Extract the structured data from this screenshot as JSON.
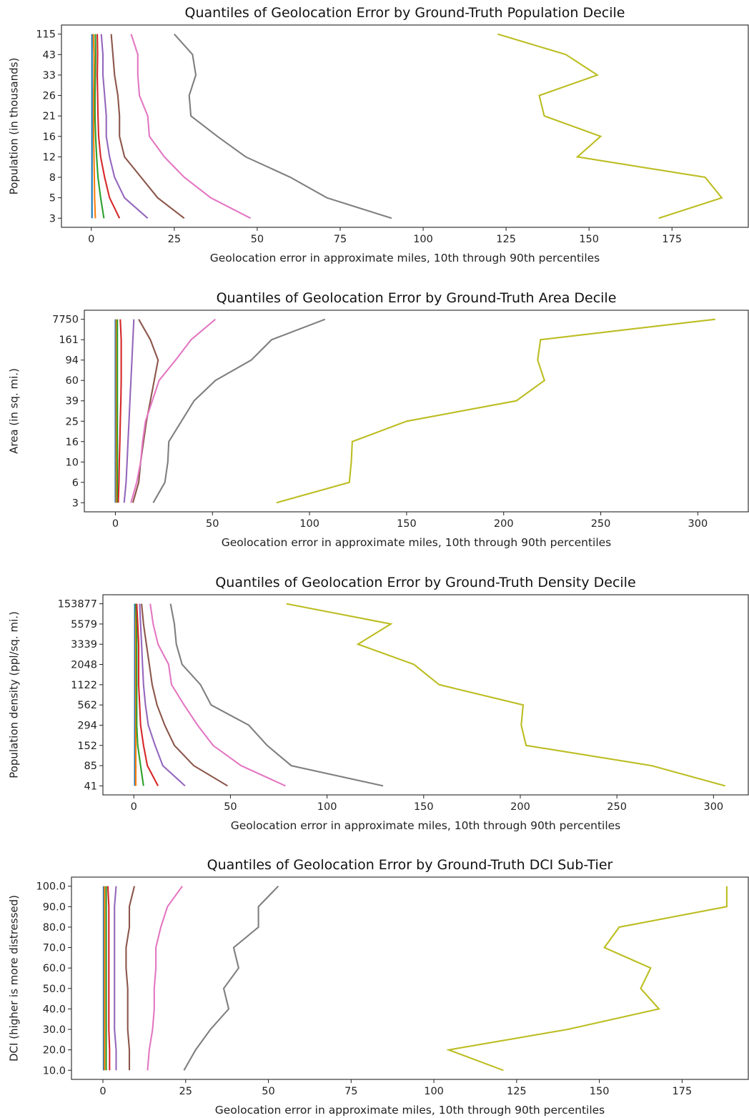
{
  "colors": [
    "#1f77b4",
    "#ff7f0e",
    "#2ca02c",
    "#d62728",
    "#9467bd",
    "#8c564b",
    "#e377c2",
    "#7f7f7f",
    "#bcbd22"
  ],
  "chart_data": [
    {
      "type": "line",
      "title": "Quantiles of Geolocation Error by Ground-Truth Population Decile",
      "xlabel": "Geolocation error in approximate miles, 10th through 90th percentiles",
      "ylabel": "Population (in thousands)",
      "xlim": [
        -9,
        198
      ],
      "xticks": [
        0,
        25,
        50,
        75,
        100,
        125,
        150,
        175
      ],
      "yticks": [
        "3",
        "5",
        "8",
        "12",
        "16",
        "21",
        "26",
        "33",
        "43",
        "115"
      ],
      "series": [
        {
          "values": [
            0.2,
            0.2,
            0.2,
            0.2,
            0.2,
            0.2,
            0.2,
            0.2,
            0.2,
            0.2
          ]
        },
        {
          "values": [
            1.2,
            1.0,
            0.9,
            0.8,
            0.7,
            0.7,
            0.7,
            0.8,
            0.8,
            0.6
          ]
        },
        {
          "values": [
            3.8,
            2.8,
            2.0,
            1.6,
            1.3,
            1.1,
            1.1,
            1.2,
            1.3,
            1.2
          ]
        },
        {
          "values": [
            8.5,
            5.5,
            4.0,
            2.8,
            2.2,
            2.0,
            1.9,
            1.8,
            1.9,
            1.8
          ]
        },
        {
          "values": [
            17.0,
            10.0,
            7.0,
            5.5,
            4.5,
            4.5,
            4.0,
            3.5,
            3.5,
            3.0
          ]
        },
        {
          "values": [
            28.0,
            20.0,
            15.0,
            10.0,
            8.5,
            8.5,
            8.0,
            7.0,
            6.5,
            6.0
          ]
        },
        {
          "values": [
            48.0,
            36.0,
            28.0,
            22.0,
            17.5,
            17.0,
            14.5,
            14.0,
            14.0,
            12.0
          ]
        },
        {
          "values": [
            90.5,
            71.0,
            60.0,
            46.5,
            38.0,
            30.0,
            29.5,
            31.5,
            30.5,
            25.0
          ]
        },
        {
          "values": [
            171.0,
            190.0,
            185.0,
            146.5,
            153.5,
            136.5,
            135.0,
            152.5,
            143.0,
            122.5
          ]
        }
      ]
    },
    {
      "type": "line",
      "title": "Quantiles of Geolocation Error by Ground-Truth Area Decile",
      "xlabel": "Geolocation error in approximate miles, 10th through 90th percentiles",
      "ylabel": "Area (in sq. mi.)",
      "xlim": [
        -16,
        326
      ],
      "xticks": [
        0,
        50,
        100,
        150,
        200,
        250,
        300
      ],
      "yticks": [
        "3",
        "6",
        "10",
        "16",
        "25",
        "39",
        "60",
        "94",
        "161",
        "7750"
      ],
      "series": [
        {
          "values": [
            0,
            0,
            0,
            0,
            0,
            0,
            0,
            0,
            0,
            0
          ]
        },
        {
          "values": [
            0.5,
            0.5,
            0.5,
            0.5,
            0.5,
            0.5,
            0.5,
            0.5,
            0.5,
            0.5
          ]
        },
        {
          "values": [
            1.0,
            1.0,
            1.0,
            1.0,
            1.0,
            1.0,
            1.0,
            1.0,
            1.0,
            1.0
          ]
        },
        {
          "values": [
            1.5,
            1.8,
            2.0,
            2.3,
            2.5,
            2.8,
            3.0,
            3.0,
            3.0,
            2.5
          ]
        },
        {
          "values": [
            4.5,
            5.5,
            6.0,
            6.5,
            7.0,
            7.5,
            8.0,
            8.5,
            9.0,
            9.5
          ]
        },
        {
          "values": [
            9.0,
            12.0,
            13.0,
            14.5,
            16.0,
            18.0,
            20.0,
            22.0,
            18.0,
            12.0
          ]
        },
        {
          "values": [
            8.0,
            11.0,
            13.0,
            14.0,
            15.5,
            19.0,
            22.5,
            31.0,
            39.0,
            51.5
          ]
        },
        {
          "values": [
            19.5,
            25.5,
            27.0,
            27.5,
            34.0,
            40.5,
            51.5,
            70.0,
            80.5,
            108.0
          ]
        },
        {
          "values": [
            83.0,
            120.5,
            121.5,
            122.0,
            150.0,
            206.5,
            221.0,
            217.5,
            219.0,
            309.0
          ]
        }
      ]
    },
    {
      "type": "line",
      "title": "Quantiles of Geolocation Error by Ground-Truth Density Decile",
      "xlabel": "Geolocation error in approximate miles, 10th through 90th percentiles",
      "ylabel": "Population density (ppl/sq. mi.)",
      "xlim": [
        -16,
        318
      ],
      "xticks": [
        0,
        50,
        100,
        150,
        200,
        250,
        300
      ],
      "yticks": [
        "41",
        "85",
        "152",
        "294",
        "562",
        "1122",
        "2048",
        "3339",
        "5579",
        "153877"
      ],
      "series": [
        {
          "values": [
            0.5,
            0.5,
            0.5,
            0.5,
            0.5,
            0.5,
            0.5,
            0.5,
            0.5,
            0.5
          ]
        },
        {
          "values": [
            1.0,
            1.0,
            1.0,
            1.0,
            1.0,
            1.0,
            1.0,
            1.0,
            1.0,
            1.0
          ]
        },
        {
          "values": [
            5.0,
            3.5,
            2.0,
            1.5,
            1.5,
            1.5,
            1.5,
            1.5,
            1.5,
            1.0
          ]
        },
        {
          "values": [
            12.5,
            7.0,
            5.0,
            3.5,
            3.0,
            2.5,
            2.5,
            2.5,
            2.0,
            1.5
          ]
        },
        {
          "values": [
            26.5,
            15.0,
            11.0,
            7.5,
            6.0,
            5.0,
            4.5,
            4.0,
            3.5,
            3.0
          ]
        },
        {
          "values": [
            48.5,
            31.0,
            21.0,
            16.0,
            12.0,
            9.5,
            8.0,
            6.5,
            5.0,
            4.0
          ]
        },
        {
          "values": [
            78.5,
            55.5,
            41.0,
            33.0,
            26.0,
            19.5,
            18.0,
            12.5,
            10.0,
            8.5
          ]
        },
        {
          "values": [
            129.0,
            81.5,
            69.0,
            59.5,
            40.0,
            34.5,
            25.0,
            22.0,
            21.0,
            19.0
          ]
        },
        {
          "values": [
            306.0,
            268.0,
            203.0,
            200.5,
            201.5,
            158.0,
            145.0,
            116.0,
            133.0,
            79.0
          ]
        }
      ]
    },
    {
      "type": "line",
      "title": "Quantiles of Geolocation Error by Ground-Truth DCI Sub-Tier",
      "xlabel": "Geolocation error in approximate miles, 10th through 90th percentiles",
      "ylabel": "DCI (higher is more distressed)",
      "xlim": [
        -9.5,
        195
      ],
      "xticks": [
        0,
        25,
        50,
        75,
        100,
        125,
        150,
        175
      ],
      "yticks": [
        "10.0",
        "20.0",
        "30.0",
        "40.0",
        "50.0",
        "60.0",
        "70.0",
        "80.0",
        "90.0",
        "100.0"
      ],
      "series": [
        {
          "values": [
            0.2,
            0.2,
            0.2,
            0.2,
            0.2,
            0.2,
            0.2,
            0.2,
            0.2,
            0.2
          ]
        },
        {
          "values": [
            0.5,
            0.5,
            0.5,
            0.5,
            0.5,
            0.5,
            0.5,
            0.5,
            0.5,
            0.5
          ]
        },
        {
          "values": [
            1.0,
            1.0,
            1.0,
            1.0,
            1.0,
            1.0,
            1.0,
            1.0,
            1.0,
            1.0
          ]
        },
        {
          "values": [
            2.0,
            2.0,
            1.8,
            1.8,
            1.8,
            1.8,
            1.8,
            1.8,
            1.8,
            1.5
          ]
        },
        {
          "values": [
            4.0,
            4.0,
            3.5,
            3.5,
            3.5,
            3.5,
            3.5,
            3.5,
            3.5,
            4.0
          ]
        },
        {
          "values": [
            8.0,
            8.0,
            7.5,
            7.5,
            7.5,
            7.0,
            7.0,
            8.0,
            8.0,
            9.5
          ]
        },
        {
          "values": [
            13.5,
            14.0,
            15.0,
            15.5,
            15.5,
            16.0,
            16.0,
            17.5,
            19.5,
            24.0
          ]
        },
        {
          "values": [
            24.5,
            28.0,
            32.5,
            38.0,
            36.5,
            41.0,
            39.5,
            47.0,
            47.0,
            53.0
          ]
        },
        {
          "values": [
            121.0,
            104.5,
            140.5,
            168.0,
            162.5,
            165.5,
            151.5,
            156.0,
            188.5,
            188.5
          ]
        }
      ]
    }
  ]
}
